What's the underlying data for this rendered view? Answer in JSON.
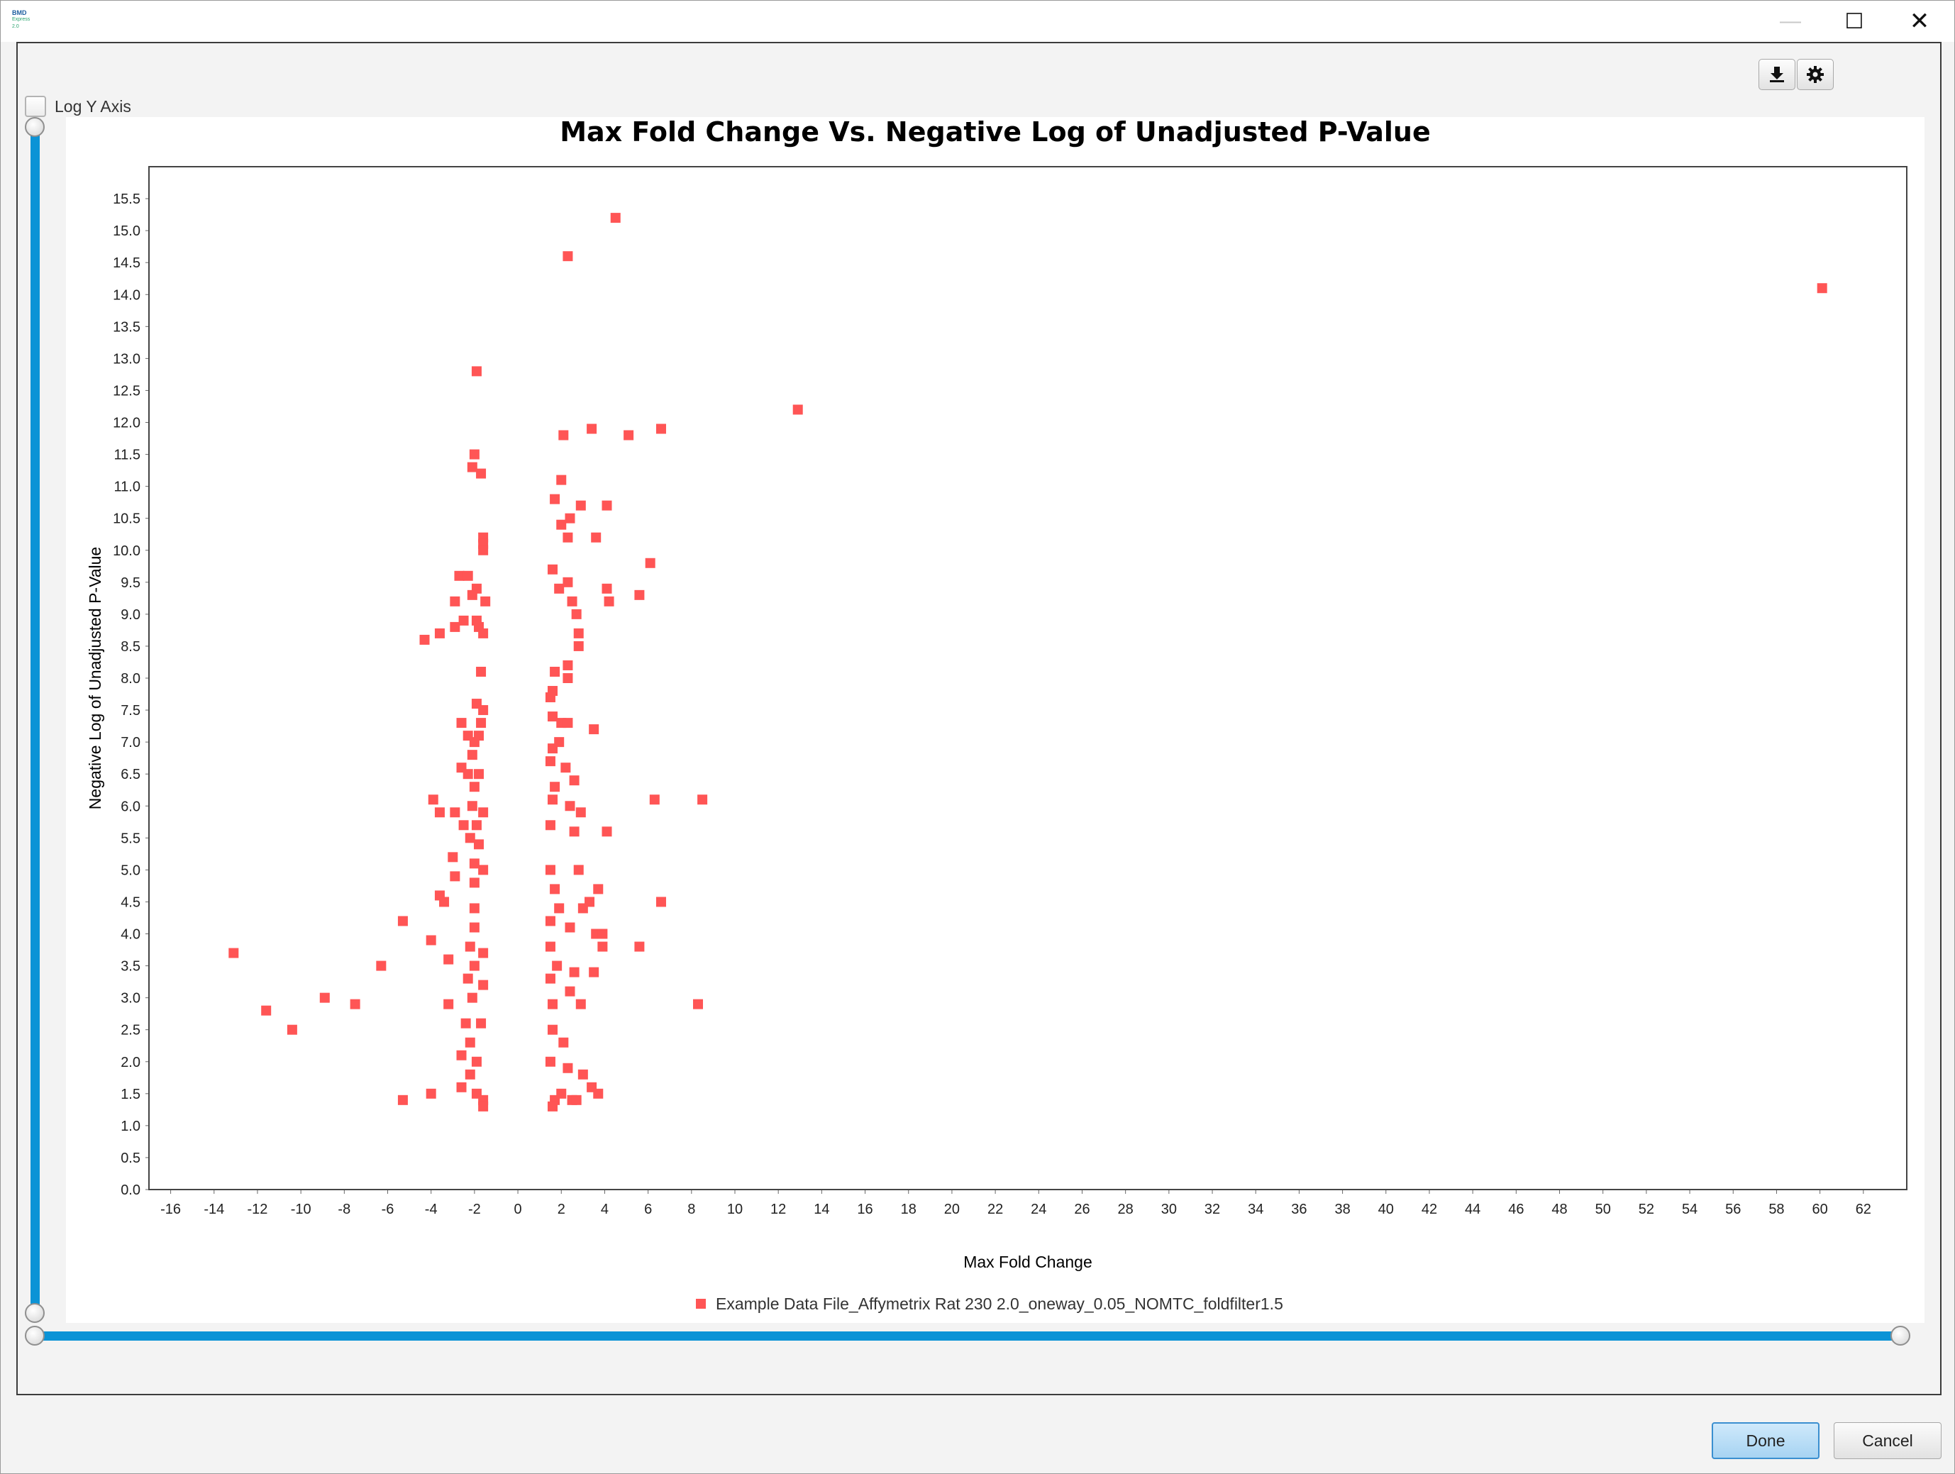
{
  "window": {
    "app_icon_text": "BMD",
    "app_icon_sub": "Express 2.0",
    "minimize_glyph": "—",
    "maximize_glyph": "☐",
    "close_glyph": "✕"
  },
  "toolbar": {
    "download_icon": "download-icon",
    "settings_icon": "gear-icon"
  },
  "options": {
    "log_y_axis_label": "Log Y Axis",
    "log_y_axis_checked": false
  },
  "colors": {
    "accent": "#0b93d6",
    "marker": "#ff5555",
    "plot_border": "#444444"
  },
  "chart_data": {
    "type": "scatter",
    "title": "Max Fold Change Vs. Negative Log of Unadjusted P-Value",
    "xlabel": "Max Fold Change",
    "ylabel": "Negative Log of Unadjusted P-Value",
    "xlim": [
      -17,
      64
    ],
    "ylim": [
      0,
      16
    ],
    "x_ticks": [
      -16,
      -14,
      -12,
      -10,
      -8,
      -6,
      -4,
      -2,
      0,
      2,
      4,
      6,
      8,
      10,
      12,
      14,
      16,
      18,
      20,
      22,
      24,
      26,
      28,
      30,
      32,
      34,
      36,
      38,
      40,
      42,
      44,
      46,
      48,
      50,
      52,
      54,
      56,
      58,
      60,
      62
    ],
    "y_ticks": [
      "0.0",
      "0.5",
      "1.0",
      "1.5",
      "2.0",
      "2.5",
      "3.0",
      "3.5",
      "4.0",
      "4.5",
      "5.0",
      "5.5",
      "6.0",
      "6.5",
      "7.0",
      "7.5",
      "8.0",
      "8.5",
      "9.0",
      "9.5",
      "10.0",
      "10.5",
      "11.0",
      "11.5",
      "12.0",
      "12.5",
      "13.0",
      "13.5",
      "14.0",
      "14.5",
      "15.0",
      "15.5"
    ],
    "grid": false,
    "legend_position": "bottom",
    "series": [
      {
        "name": "Example Data File_Affymetrix Rat 230 2.0_oneway_0.05_NOMTC_foldfilter1.5",
        "color": "#ff5555",
        "points": [
          [
            4.5,
            15.2
          ],
          [
            2.3,
            14.6
          ],
          [
            60.1,
            14.1
          ],
          [
            12.9,
            12.2
          ],
          [
            -1.9,
            12.8
          ],
          [
            2.1,
            11.8
          ],
          [
            3.4,
            11.9
          ],
          [
            5.1,
            11.8
          ],
          [
            6.6,
            11.9
          ],
          [
            -2.0,
            11.5
          ],
          [
            -2.1,
            11.3
          ],
          [
            -1.7,
            11.2
          ],
          [
            2.0,
            11.1
          ],
          [
            1.7,
            10.8
          ],
          [
            2.9,
            10.7
          ],
          [
            4.1,
            10.7
          ],
          [
            2.4,
            10.5
          ],
          [
            2.0,
            10.4
          ],
          [
            2.3,
            10.2
          ],
          [
            3.6,
            10.2
          ],
          [
            -1.6,
            10.2
          ],
          [
            -1.6,
            10.1
          ],
          [
            -1.6,
            10.0
          ],
          [
            6.1,
            9.8
          ],
          [
            1.6,
            9.7
          ],
          [
            -2.7,
            9.6
          ],
          [
            -2.3,
            9.6
          ],
          [
            -1.9,
            9.4
          ],
          [
            2.3,
            9.5
          ],
          [
            -2.1,
            9.3
          ],
          [
            1.9,
            9.4
          ],
          [
            4.1,
            9.4
          ],
          [
            2.5,
            9.2
          ],
          [
            4.2,
            9.2
          ],
          [
            5.6,
            9.3
          ],
          [
            -2.9,
            9.2
          ],
          [
            -1.5,
            9.2
          ],
          [
            2.7,
            9.0
          ],
          [
            -2.5,
            8.9
          ],
          [
            -1.9,
            8.9
          ],
          [
            -2.9,
            8.8
          ],
          [
            -1.8,
            8.8
          ],
          [
            -3.6,
            8.7
          ],
          [
            -1.6,
            8.7
          ],
          [
            -4.3,
            8.6
          ],
          [
            2.8,
            8.7
          ],
          [
            2.8,
            8.5
          ],
          [
            2.3,
            8.2
          ],
          [
            1.7,
            8.1
          ],
          [
            -1.7,
            8.1
          ],
          [
            2.3,
            8.0
          ],
          [
            1.6,
            7.8
          ],
          [
            1.5,
            7.7
          ],
          [
            -1.9,
            7.6
          ],
          [
            -1.6,
            7.5
          ],
          [
            1.6,
            7.4
          ],
          [
            2.0,
            7.3
          ],
          [
            2.3,
            7.3
          ],
          [
            -2.6,
            7.3
          ],
          [
            3.5,
            7.2
          ],
          [
            -1.7,
            7.3
          ],
          [
            -1.8,
            7.1
          ],
          [
            -2.3,
            7.1
          ],
          [
            -2.0,
            7.0
          ],
          [
            1.9,
            7.0
          ],
          [
            1.6,
            6.9
          ],
          [
            -2.1,
            6.8
          ],
          [
            -2.6,
            6.6
          ],
          [
            1.5,
            6.7
          ],
          [
            2.2,
            6.6
          ],
          [
            -1.8,
            6.5
          ],
          [
            2.6,
            6.4
          ],
          [
            -2.3,
            6.5
          ],
          [
            -2.0,
            6.3
          ],
          [
            1.7,
            6.3
          ],
          [
            -3.9,
            6.1
          ],
          [
            -2.1,
            6.0
          ],
          [
            1.6,
            6.1
          ],
          [
            2.4,
            6.0
          ],
          [
            6.3,
            6.1
          ],
          [
            8.5,
            6.1
          ],
          [
            -3.6,
            5.9
          ],
          [
            -2.9,
            5.9
          ],
          [
            2.9,
            5.9
          ],
          [
            -1.6,
            5.9
          ],
          [
            -2.5,
            5.7
          ],
          [
            -1.9,
            5.7
          ],
          [
            1.5,
            5.7
          ],
          [
            2.6,
            5.6
          ],
          [
            4.1,
            5.6
          ],
          [
            -2.2,
            5.5
          ],
          [
            -1.8,
            5.4
          ],
          [
            -3.0,
            5.2
          ],
          [
            -2.0,
            5.1
          ],
          [
            -1.6,
            5.0
          ],
          [
            1.5,
            5.0
          ],
          [
            2.8,
            5.0
          ],
          [
            -2.9,
            4.9
          ],
          [
            -2.0,
            4.8
          ],
          [
            1.7,
            4.7
          ],
          [
            3.7,
            4.7
          ],
          [
            -3.6,
            4.6
          ],
          [
            -3.4,
            4.5
          ],
          [
            -2.0,
            4.4
          ],
          [
            1.9,
            4.4
          ],
          [
            3.0,
            4.4
          ],
          [
            3.3,
            4.5
          ],
          [
            6.6,
            4.5
          ],
          [
            -5.3,
            4.2
          ],
          [
            -2.0,
            4.1
          ],
          [
            1.5,
            4.2
          ],
          [
            2.4,
            4.1
          ],
          [
            3.6,
            4.0
          ],
          [
            3.9,
            4.0
          ],
          [
            -4.0,
            3.9
          ],
          [
            -2.2,
            3.8
          ],
          [
            -1.6,
            3.7
          ],
          [
            1.5,
            3.8
          ],
          [
            3.9,
            3.8
          ],
          [
            5.6,
            3.8
          ],
          [
            -13.1,
            3.7
          ],
          [
            -3.2,
            3.6
          ],
          [
            -2.0,
            3.5
          ],
          [
            1.8,
            3.5
          ],
          [
            2.6,
            3.4
          ],
          [
            -6.3,
            3.5
          ],
          [
            3.5,
            3.4
          ],
          [
            -2.3,
            3.3
          ],
          [
            -1.6,
            3.2
          ],
          [
            1.5,
            3.3
          ],
          [
            2.4,
            3.1
          ],
          [
            -8.9,
            3.0
          ],
          [
            -2.1,
            3.0
          ],
          [
            1.6,
            2.9
          ],
          [
            2.9,
            2.9
          ],
          [
            -3.2,
            2.9
          ],
          [
            -7.5,
            2.9
          ],
          [
            8.3,
            2.9
          ],
          [
            -11.6,
            2.8
          ],
          [
            -2.4,
            2.6
          ],
          [
            -1.7,
            2.6
          ],
          [
            1.6,
            2.5
          ],
          [
            -10.4,
            2.5
          ],
          [
            -2.2,
            2.3
          ],
          [
            2.1,
            2.3
          ],
          [
            -2.6,
            2.1
          ],
          [
            -1.9,
            2.0
          ],
          [
            1.5,
            2.0
          ],
          [
            2.3,
            1.9
          ],
          [
            -2.2,
            1.8
          ],
          [
            3.0,
            1.8
          ],
          [
            -2.6,
            1.6
          ],
          [
            -1.9,
            1.5
          ],
          [
            -4.0,
            1.5
          ],
          [
            2.0,
            1.5
          ],
          [
            3.4,
            1.6
          ],
          [
            3.7,
            1.5
          ],
          [
            -1.6,
            1.4
          ],
          [
            1.7,
            1.4
          ],
          [
            2.5,
            1.4
          ],
          [
            2.7,
            1.4
          ],
          [
            -5.3,
            1.4
          ],
          [
            -1.6,
            1.3
          ],
          [
            1.6,
            1.3
          ]
        ]
      }
    ]
  },
  "dialog": {
    "done_label": "Done",
    "cancel_label": "Cancel"
  }
}
